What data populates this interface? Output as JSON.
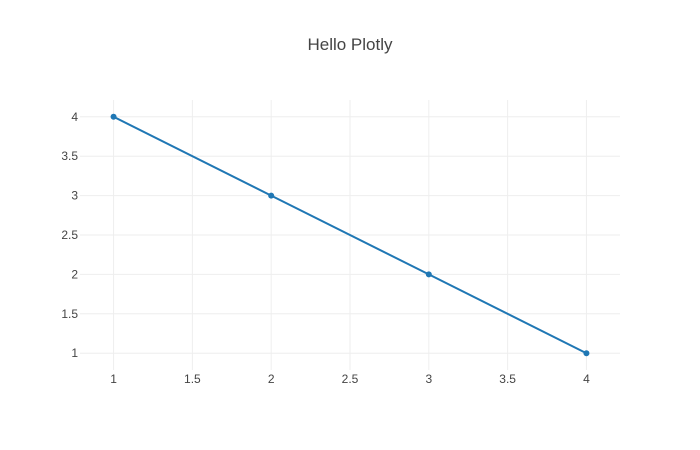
{
  "chart_data": {
    "type": "line",
    "title": "Hello Plotly",
    "x": [
      1,
      2,
      3,
      4
    ],
    "series": [
      {
        "values": [
          4,
          3,
          2,
          1
        ],
        "color": "#1f77b4",
        "mode": "lines+markers"
      }
    ],
    "x_ticks": [
      "1",
      "1.5",
      "2",
      "2.5",
      "3",
      "3.5",
      "4"
    ],
    "y_ticks": [
      "1",
      "1.5",
      "2",
      "2.5",
      "3",
      "3.5",
      "4"
    ],
    "x_tick_values": [
      1,
      1.5,
      2,
      2.5,
      3,
      3.5,
      4
    ],
    "y_tick_values": [
      1,
      1.5,
      2,
      2.5,
      3,
      3.5,
      4
    ],
    "xlim": [
      0.787,
      4.213
    ],
    "ylim": [
      0.787,
      4.213
    ],
    "xlabel": "",
    "ylabel": "",
    "grid": true,
    "legend": "none"
  }
}
